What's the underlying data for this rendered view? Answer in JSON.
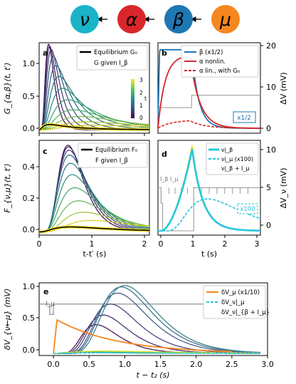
{
  "chain": {
    "nodes": [
      {
        "symbol": "ν",
        "color": "#1ab3c8"
      },
      {
        "symbol": "α",
        "color": "#d9262b"
      },
      {
        "symbol": "β",
        "color": "#1f77b4"
      },
      {
        "symbol": "μ",
        "color": "#f5871f"
      }
    ]
  },
  "panels": {
    "a": {
      "letter": "a",
      "ylabel": "G_{α,β}(t, t′)",
      "yticks": [
        "0.0",
        "0.5",
        "1.0"
      ],
      "legend": [
        "Equilibrium G₀",
        "G given I_β"
      ],
      "colorbar_label": "t",
      "colorbar_ticks": [
        "0",
        "1",
        "2",
        "3"
      ]
    },
    "b": {
      "letter": "b",
      "y2label": "ΔV (mV)",
      "y2ticks": [
        "0",
        "10",
        "20"
      ],
      "legend": [
        "β (x1/2)",
        "α nonlin.",
        "α lin., with G₀"
      ],
      "badge": "x1/2"
    },
    "c": {
      "letter": "c",
      "ylabel": "F_{ν,μ}(t, t′)",
      "yticks": [
        "0.0",
        "0.2",
        "0.4"
      ],
      "xlabel": "t-t′ (s)",
      "xticks": [
        "0",
        "1",
        "2"
      ],
      "legend": [
        "Equilibrium F₀",
        "F given I_β"
      ]
    },
    "d": {
      "letter": "d",
      "y2label": "ΔV_ν (mV)",
      "y2ticks": [
        "0",
        "5",
        "10"
      ],
      "xlabel": "t (s)",
      "xticks": [
        "0",
        "1",
        "2",
        "3"
      ],
      "legend": [
        "ν|_β",
        "ν|_μ (x100)",
        "ν|_β + I_μ"
      ],
      "annotation": "I_β  I_μ",
      "badge": "x100"
    },
    "e": {
      "letter": "e",
      "ylabel": "δV_{ν←μ} (mV)",
      "yticks": [
        "0.0",
        "0.5",
        "1.0"
      ],
      "xlabel": "t − t₂ (s)",
      "xticks": [
        "0.0",
        "0.5",
        "1.0",
        "1.5",
        "2.0",
        "2.5",
        "3.0"
      ],
      "legend": [
        "δV_μ (x1/10)",
        "δV_ν|_μ",
        "δV_ν|_{β + I_μ}"
      ],
      "annotation": "I_μ"
    }
  },
  "chart_data": [
    {
      "panel": "a",
      "type": "line",
      "xlim": [
        0,
        2.1
      ],
      "ylim": [
        -0.05,
        1.3
      ],
      "series": [
        {
          "name": "Equilibrium G₀",
          "peak_x": 0.2,
          "peak_y": 0.08
        },
        {
          "name": "G given I_β",
          "peak_x": [
            0.18,
            0.2,
            0.23,
            0.27,
            0.32,
            0.38,
            0.45,
            0.55,
            0.65,
            0.78,
            0.9,
            1.05
          ],
          "peak_y": [
            1.28,
            1.25,
            1.2,
            1.1,
            0.96,
            0.8,
            0.62,
            0.45,
            0.3,
            0.2,
            0.12,
            0.07
          ]
        }
      ]
    },
    {
      "panel": "b",
      "type": "line",
      "xlim": [
        0,
        3.2
      ],
      "ylim": [
        0,
        20
      ],
      "series": [
        {
          "name": "β (x1/2)",
          "rise_x": 0.05,
          "plateau_y": 19,
          "fall_x": 1.05
        },
        {
          "name": "α nonlin.",
          "peak_x": 1.0,
          "peak_y": 17.5
        },
        {
          "name": "α lin., with G₀",
          "peak_x": 1.0,
          "peak_y": 1.8
        }
      ]
    },
    {
      "panel": "c",
      "type": "line",
      "xlim": [
        0,
        2.1
      ],
      "ylim": [
        -0.02,
        0.56
      ],
      "series": [
        {
          "name": "Equilibrium F₀",
          "peak_x": 0.6,
          "peak_y": 0.03
        },
        {
          "name": "F given I_β",
          "peak_x": [
            0.55,
            0.56,
            0.57,
            0.58,
            0.6,
            0.63,
            0.68,
            0.75,
            0.85,
            1.0
          ],
          "peak_y": [
            0.53,
            0.52,
            0.5,
            0.47,
            0.42,
            0.35,
            0.27,
            0.19,
            0.12,
            0.07
          ]
        }
      ]
    },
    {
      "panel": "d",
      "type": "line",
      "xlim": [
        -0.1,
        3.2
      ],
      "ylim": [
        -0.5,
        10.5
      ],
      "series": [
        {
          "name": "ν|_β",
          "peak_x": 1.0,
          "peak_y": 9.5
        },
        {
          "name": "ν|_μ (x100)",
          "peak_x": 1.5,
          "peak_y": 3.7
        },
        {
          "name": "ν|_β + I_μ",
          "peak_x": 1.0,
          "peak_y": 10.0
        }
      ]
    },
    {
      "panel": "e",
      "type": "line",
      "xlim": [
        -0.2,
        3.0
      ],
      "ylim": [
        -0.03,
        1.03
      ],
      "series": [
        {
          "name": "δV_μ (x1/10)",
          "peak_x": 0.05,
          "peak_y": 0.49
        },
        {
          "name": "δV_ν|_μ",
          "peak_x": 0.8,
          "peak_y": 0.01
        },
        {
          "name": "δV_ν|_{β + I_μ}",
          "peak_x": [
            0.6,
            0.7,
            0.8,
            0.9,
            0.95,
            1.0
          ],
          "peak_y": [
            0.42,
            0.56,
            0.72,
            0.88,
            0.97,
            0.99
          ]
        }
      ]
    }
  ]
}
